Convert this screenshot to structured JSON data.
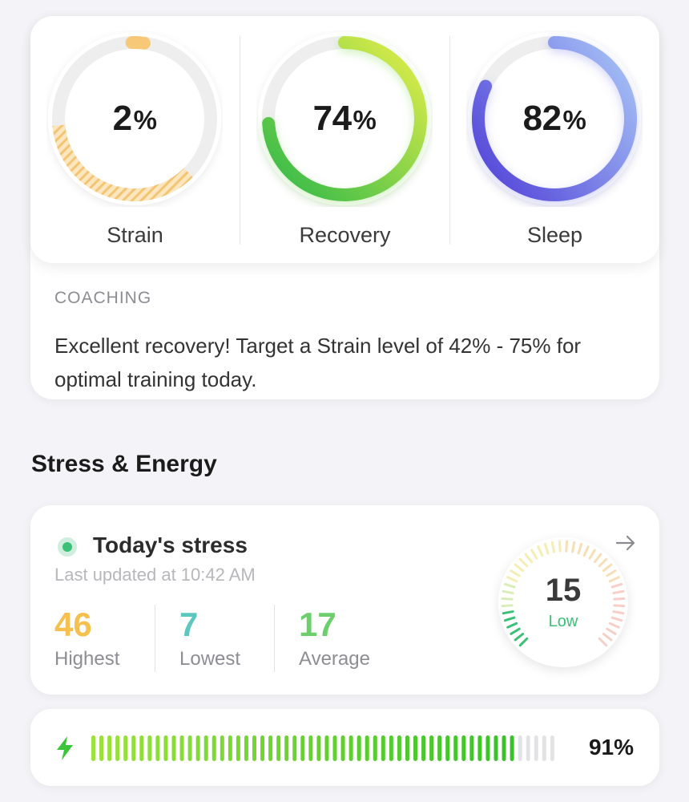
{
  "rings": [
    {
      "id": "strain",
      "value": "2",
      "unit": "%",
      "label": "Strain",
      "fraction": 0.02
    },
    {
      "id": "recovery",
      "value": "74",
      "unit": "%",
      "label": "Recovery",
      "fraction": 0.74
    },
    {
      "id": "sleep",
      "value": "82",
      "unit": "%",
      "label": "Sleep",
      "fraction": 0.82
    }
  ],
  "coaching": {
    "title": "COACHING",
    "text": "Excellent recovery! Target a Strain level of 42% - 75% for optimal training today."
  },
  "section_title": "Stress & Energy",
  "stress": {
    "title": "Today's stress",
    "updated": "Last updated at 10:42 AM",
    "stats": [
      {
        "value": "46",
        "label": "Highest",
        "color": "#f5c04e"
      },
      {
        "value": "7",
        "label": "Lowest",
        "color": "#5cc7be"
      },
      {
        "value": "17",
        "label": "Average",
        "color": "#6ccf6c"
      }
    ],
    "gauge": {
      "value": "15",
      "level": "Low",
      "fraction": 0.15
    },
    "arrow_icon": "arrow-right-icon"
  },
  "energy": {
    "icon": "lightning-bolt-icon",
    "value": "91%",
    "fraction": 0.91
  },
  "colors": {
    "strain": "#f6c878",
    "recovery_start": "#2db84a",
    "recovery_end": "#e6ef4a",
    "sleep_start": "#5a4fdb",
    "sleep_end": "#a9c7f7",
    "stress_low": "#3cbf76",
    "energy": "#5ad23a"
  }
}
